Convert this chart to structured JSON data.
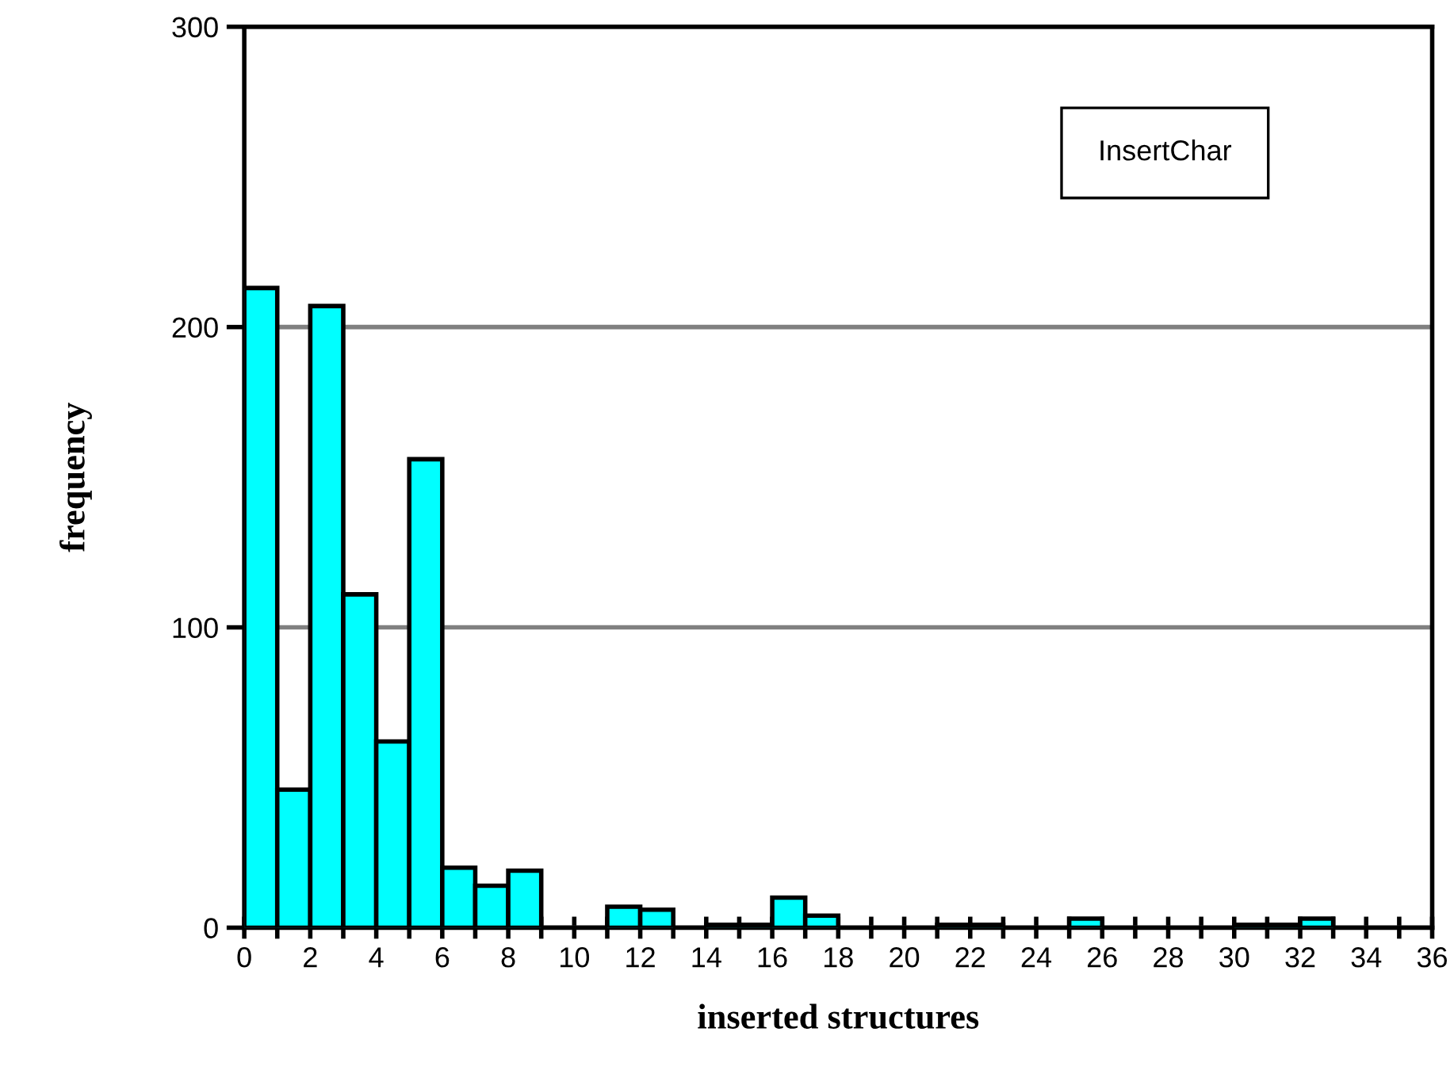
{
  "chart_data": {
    "type": "histogram",
    "xlabel": "inserted structures",
    "ylabel": "frequency",
    "annotations": [
      "InsertChar"
    ],
    "bins": [
      0,
      1,
      2,
      3,
      4,
      5,
      6,
      7,
      8,
      9,
      10,
      11,
      12,
      13,
      14,
      15,
      16,
      17,
      18,
      19,
      20,
      21,
      22,
      23,
      24,
      25,
      26,
      27,
      28,
      29,
      30,
      31,
      32,
      33,
      34,
      35,
      36
    ],
    "values": [
      213,
      46,
      207,
      111,
      62,
      156,
      20,
      14,
      19,
      0,
      0,
      7,
      6,
      0,
      1,
      1,
      10,
      4,
      0,
      0,
      0,
      1,
      1,
      0,
      0,
      3,
      0,
      0,
      0,
      0,
      1,
      1,
      3,
      0,
      0,
      0
    ],
    "color": "#00ffff",
    "xlim": [
      0,
      36
    ],
    "ylim": [
      0,
      300
    ],
    "xticks": [
      0,
      {
        "value": 1,
        "label": null
      },
      2,
      {
        "value": 3,
        "label": null
      },
      4,
      {
        "value": 5,
        "label": null
      },
      6,
      {
        "value": 7,
        "label": null
      },
      8,
      {
        "value": 9,
        "label": null
      },
      10,
      {
        "value": 11,
        "label": null
      },
      12,
      {
        "value": 13,
        "label": null
      },
      14,
      {
        "value": 15,
        "label": null
      },
      16,
      {
        "value": 17,
        "label": null
      },
      18,
      {
        "value": 19,
        "label": null
      },
      20,
      {
        "value": 21,
        "label": null
      },
      22,
      {
        "value": 23,
        "label": null
      },
      24,
      {
        "value": 25,
        "label": null
      },
      26,
      {
        "value": 27,
        "label": null
      },
      28,
      {
        "value": 29,
        "label": null
      },
      30,
      {
        "value": 31,
        "label": null
      },
      32,
      {
        "value": 33,
        "label": null
      },
      34,
      {
        "value": 35,
        "label": null
      },
      36
    ],
    "yticks": [
      0,
      100,
      200,
      300
    ],
    "grid": "y"
  }
}
